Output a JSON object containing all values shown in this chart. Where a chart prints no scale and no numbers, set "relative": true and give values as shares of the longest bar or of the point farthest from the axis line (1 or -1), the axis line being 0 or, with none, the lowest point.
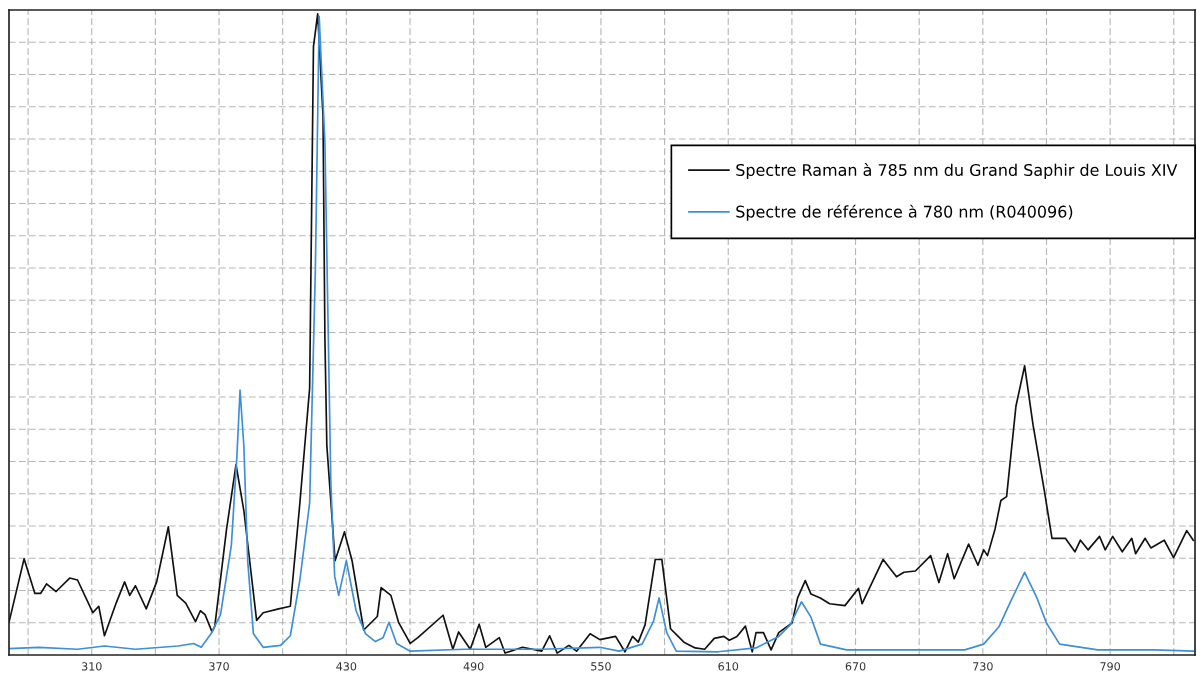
{
  "chart_data": {
    "type": "line",
    "relative": true,
    "xlim": [
      271,
      830
    ],
    "xticks": [
      {
        "value": 280,
        "label": null
      },
      310,
      {
        "value": 340,
        "label": null
      },
      370,
      {
        "value": 400,
        "label": null
      },
      430,
      {
        "value": 460,
        "label": null
      },
      490,
      {
        "value": 520,
        "label": null
      },
      550,
      {
        "value": 580,
        "label": null
      },
      610,
      {
        "value": 640,
        "label": null
      },
      670,
      {
        "value": 700,
        "label": null
      },
      730,
      {
        "value": 760,
        "label": null
      },
      790,
      {
        "value": 820,
        "label": null
      }
    ],
    "grid": true,
    "legend": "top right",
    "marker": "none",
    "line_style": "solid",
    "series": [
      {
        "name": "Spectre Raman à 785 nm du Grand Saphir de Louis XIV",
        "color": "#111111",
        "x": [
          271,
          278.1,
          283.2,
          285.9,
          288.7,
          293.2,
          299.6,
          303.3,
          310.5,
          313.3,
          316.0,
          321.5,
          325.5,
          327.9,
          330.6,
          335.7,
          340.6,
          346.1,
          350.3,
          354.3,
          358.9,
          361.2,
          363.4,
          366.7,
          368.0,
          373.5,
          378.0,
          381.7,
          387.7,
          390.8,
          398.1,
          403.6,
          408.1,
          412.7,
          414.5,
          416.5,
          419.0,
          419.9,
          420.8,
          424.7,
          429.1,
          432.7,
          438.2,
          444.6,
          446.4,
          451.0,
          454.6,
          460.1,
          463.7,
          475.6,
          480.2,
          482.9,
          488.4,
          492.6,
          495.7,
          502.1,
          504.8,
          513.0,
          522.1,
          525.8,
          529.4,
          534.9,
          538.5,
          544.9,
          549.5,
          556.9,
          561.3,
          564.9,
          567.6,
          570.8,
          575.6,
          578.7,
          582.8,
          586.4,
          589.1,
          594.4,
          598.9,
          603.4,
          607.9,
          610.5,
          614.1,
          618.1,
          621.3,
          623.1,
          626.6,
          630.2,
          633.8,
          640.1,
          642.7,
          646.3,
          649.0,
          653.4,
          657.8,
          665.0,
          671.4,
          673.1,
          683.0,
          689.3,
          692.8,
          698.2,
          705.4,
          709.3,
          713.4,
          716.5,
          723.3,
          727.7,
          730.4,
          732.2,
          735.8,
          738.5,
          741.2,
          745.6,
          749.7,
          753.7,
          759.0,
          762.6,
          768.9,
          773.4,
          776.0,
          779.6,
          785.0,
          787.7,
          791.2,
          795.7,
          800.2,
          802.0,
          806.5,
          809.2,
          815.5,
          819.9,
          826.1,
          829.2
        ],
        "values": [
          0.051,
          0.15,
          0.096,
          0.096,
          0.111,
          0.099,
          0.12,
          0.117,
          0.066,
          0.076,
          0.03,
          0.081,
          0.114,
          0.093,
          0.108,
          0.072,
          0.114,
          0.2,
          0.093,
          0.081,
          0.052,
          0.069,
          0.063,
          0.036,
          0.045,
          0.195,
          0.297,
          0.225,
          0.054,
          0.066,
          0.072,
          0.076,
          0.237,
          0.416,
          0.949,
          1.0,
          0.841,
          0.494,
          0.327,
          0.147,
          0.192,
          0.147,
          0.039,
          0.06,
          0.105,
          0.093,
          0.051,
          0.018,
          0.027,
          0.062,
          0.009,
          0.036,
          0.009,
          0.048,
          0.012,
          0.027,
          0.003,
          0.012,
          0.006,
          0.03,
          0.003,
          0.015,
          0.006,
          0.033,
          0.024,
          0.029,
          0.005,
          0.029,
          0.02,
          0.047,
          0.149,
          0.149,
          0.041,
          0.029,
          0.02,
          0.011,
          0.009,
          0.026,
          0.029,
          0.023,
          0.029,
          0.045,
          0.005,
          0.035,
          0.035,
          0.008,
          0.035,
          0.05,
          0.089,
          0.116,
          0.095,
          0.089,
          0.08,
          0.077,
          0.104,
          0.08,
          0.149,
          0.122,
          0.129,
          0.131,
          0.155,
          0.113,
          0.158,
          0.119,
          0.173,
          0.14,
          0.164,
          0.155,
          0.197,
          0.241,
          0.247,
          0.388,
          0.451,
          0.358,
          0.256,
          0.182,
          0.182,
          0.161,
          0.179,
          0.164,
          0.185,
          0.164,
          0.185,
          0.161,
          0.182,
          0.158,
          0.182,
          0.167,
          0.179,
          0.152,
          0.194,
          0.179
        ]
      },
      {
        "name": "Spectre de référence à 780 nm (R040096)",
        "color": "#3d8fd6",
        "x": [
          271,
          285,
          303.3,
          316,
          330.6,
          350.7,
          358.0,
          361.6,
          366.2,
          370.7,
          375.8,
          378.4,
          379.9,
          381.7,
          383.5,
          386.2,
          390.8,
          399.0,
          403.6,
          408.1,
          412.7,
          415.4,
          417.2,
          419.9,
          422.7,
          424.5,
          426.4,
          430.0,
          434.6,
          439.1,
          443.7,
          447.3,
          450.1,
          453.7,
          460.1,
          485.6,
          522.1,
          549.5,
          558.6,
          569.4,
          574.8,
          577.4,
          581.0,
          585.5,
          605.2,
          623.1,
          633.8,
          639.2,
          644.5,
          649.0,
          653.5,
          665.8,
          694.6,
          721.5,
          730.4,
          737.6,
          743.0,
          749.7,
          755.5,
          760.0,
          766.2,
          784.2,
          810.9,
          829.2
        ],
        "values": [
          0.01,
          0.012,
          0.009,
          0.014,
          0.009,
          0.014,
          0.018,
          0.012,
          0.033,
          0.063,
          0.171,
          0.309,
          0.413,
          0.326,
          0.147,
          0.033,
          0.012,
          0.015,
          0.03,
          0.117,
          0.237,
          0.601,
          0.996,
          0.799,
          0.267,
          0.123,
          0.093,
          0.147,
          0.069,
          0.033,
          0.021,
          0.027,
          0.051,
          0.018,
          0.006,
          0.009,
          0.009,
          0.012,
          0.006,
          0.017,
          0.053,
          0.089,
          0.035,
          0.006,
          0.005,
          0.011,
          0.029,
          0.047,
          0.083,
          0.059,
          0.017,
          0.008,
          0.008,
          0.008,
          0.017,
          0.044,
          0.083,
          0.129,
          0.089,
          0.05,
          0.017,
          0.008,
          0.008,
          0.006
        ]
      }
    ]
  }
}
